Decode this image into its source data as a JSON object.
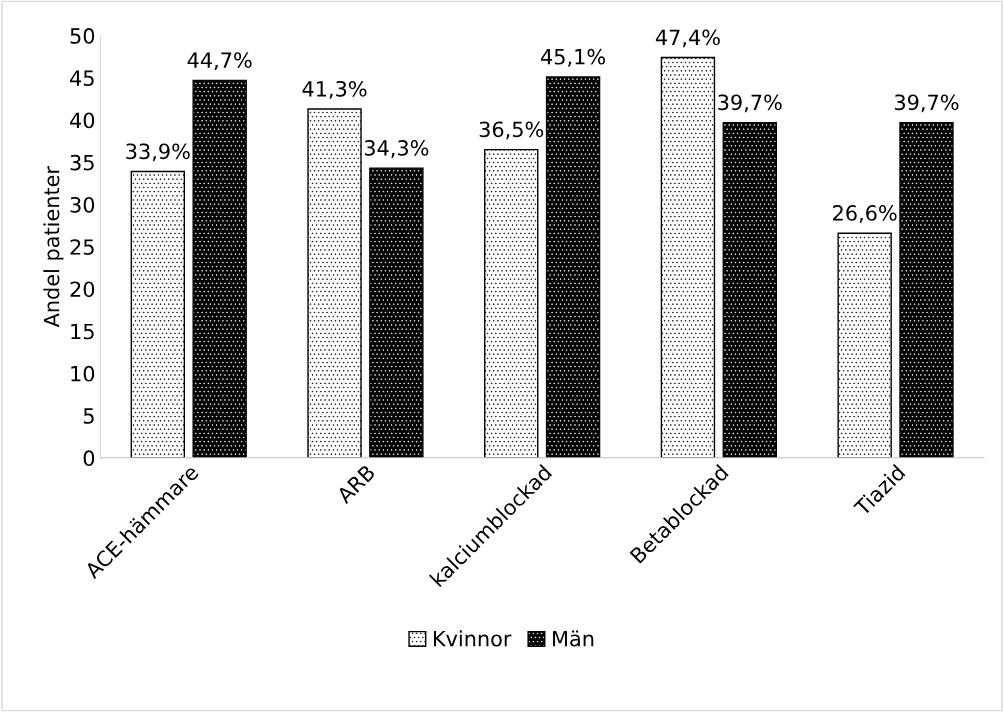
{
  "chart_data": {
    "type": "bar",
    "ylabel": "Andel patienter",
    "categories": [
      "ACE-hämmare",
      "ARB",
      "kalciumblockad",
      "Betablockad",
      "Tiazid"
    ],
    "series": [
      {
        "name": "Kvinnor",
        "color": "#ffffff",
        "values": [
          33.9,
          41.3,
          36.5,
          47.4,
          26.6
        ],
        "value_labels": [
          "33,9%",
          "41,3%",
          "36,5%",
          "47,4%",
          "26,6%"
        ]
      },
      {
        "name": "Män",
        "color": "#000000",
        "values": [
          44.7,
          34.3,
          45.1,
          39.7,
          39.7
        ],
        "value_labels": [
          "44,7%",
          "34,3%",
          "45,1%",
          "39,7%",
          "39,7%"
        ]
      }
    ],
    "ylim": [
      0,
      50
    ],
    "yticks": [
      0,
      5,
      10,
      15,
      20,
      25,
      30,
      35,
      40,
      45,
      50
    ],
    "grid": false,
    "legend": "bottom"
  }
}
